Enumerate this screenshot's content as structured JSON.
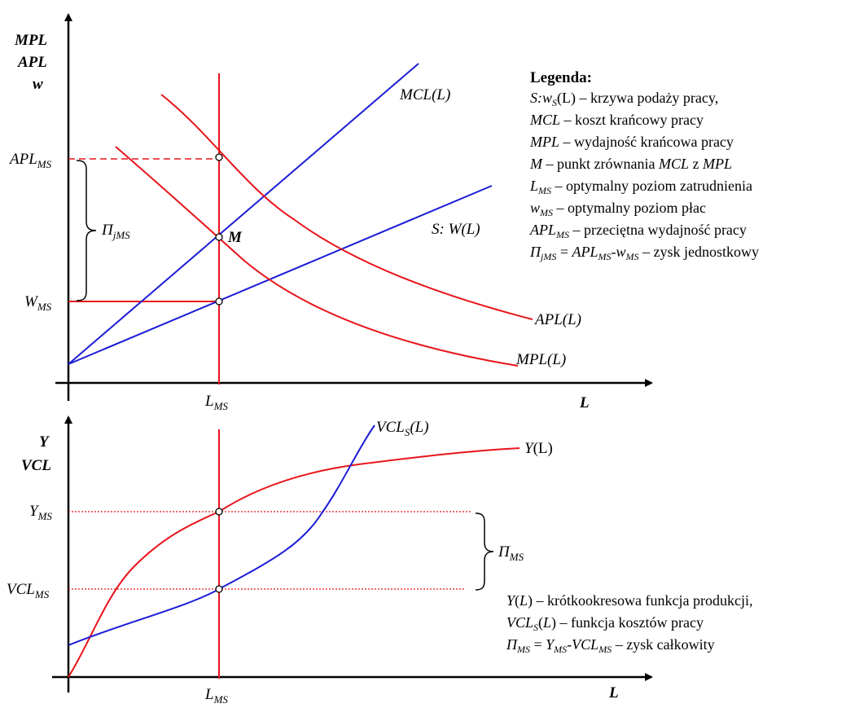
{
  "top_chart": {
    "y_axis_labels": [
      "MPL",
      "APL",
      "w"
    ],
    "x_axis_label": "L",
    "tick_apl": {
      "main": "APL",
      "sub": "MS"
    },
    "tick_w": {
      "main": "W",
      "sub": "MS"
    },
    "tick_l": {
      "main": "L",
      "sub": "MS"
    },
    "pi_label": {
      "main": "Π",
      "sub": "jMS"
    },
    "point_m": "M",
    "curve_mcl": "MCL(L)",
    "curve_supply": "S: W(L)",
    "curve_apl": "APL(L)",
    "curve_mpl": "MPL(L)",
    "colors": {
      "red": "#e8141b",
      "blue": "#1c1cd6",
      "black": "#000000"
    }
  },
  "legend": {
    "title": "Legenda:",
    "items": [
      {
        "a": "S:w",
        "a_sub": "S",
        "b": "(L)",
        "c": " – krzywa podaży pracy,"
      },
      {
        "a": "MCL",
        "a_sub": "",
        "b": "",
        "c": " – koszt krańcowy pracy"
      },
      {
        "a": "MPL",
        "a_sub": "",
        "b": "",
        "c": " – wydajność krańcowa pracy"
      },
      {
        "a": "M",
        "a_sub": "",
        "b": "",
        "c": " – punkt zrównania ",
        "d": "MCL",
        "e": " z ",
        "f": "MPL"
      },
      {
        "a": "L",
        "a_sub": "MS",
        "b": "",
        "c": " – optymalny poziom zatrudnienia"
      },
      {
        "a": "w",
        "a_sub": "MS",
        "b": "",
        "c": " – optymalny poziom płac"
      },
      {
        "a": "APL",
        "a_sub": "MS",
        "b": "",
        "c": " – przeciętna wydajność pracy"
      },
      {
        "a": "Π",
        "a_sub": "jMS",
        "b": " = ",
        "b2": "APL",
        "b2_sub": "MS",
        "b3": "-w",
        "b3_sub": "MS",
        "c": " – zysk jednostkowy"
      }
    ]
  },
  "bottom_chart": {
    "y_axis_labels": [
      "Y",
      "VCL"
    ],
    "x_axis_label": "L",
    "tick_y": {
      "main": "Y",
      "sub": "MS"
    },
    "tick_vcl": {
      "main": "VCL",
      "sub": "MS"
    },
    "tick_l": {
      "main": "L",
      "sub": "MS"
    },
    "pi_label": {
      "main": "Π",
      "sub": "MS"
    },
    "curve_vcl": {
      "main": "VCL",
      "sub": "S",
      "tail": "(L)"
    },
    "curve_y": {
      "main": "Y",
      "tail": "(L)"
    }
  },
  "bottom_legend": {
    "line1": {
      "a": "Y",
      "b": "(",
      "c": "L",
      "d": ") – krótkookresowa funkcja produkcji,"
    },
    "line2": {
      "a": "VCL",
      "a_sub": "S",
      "b": "(",
      "c": "L",
      "d": ") – funkcja kosztów pracy"
    },
    "line3": {
      "a": "Π",
      "a_sub": "MS",
      "b": " = ",
      "c": "Y",
      "c_sub": "MS",
      "d": "-VCL",
      "d_sub": "MS",
      "e": " – zysk całkowity"
    }
  }
}
